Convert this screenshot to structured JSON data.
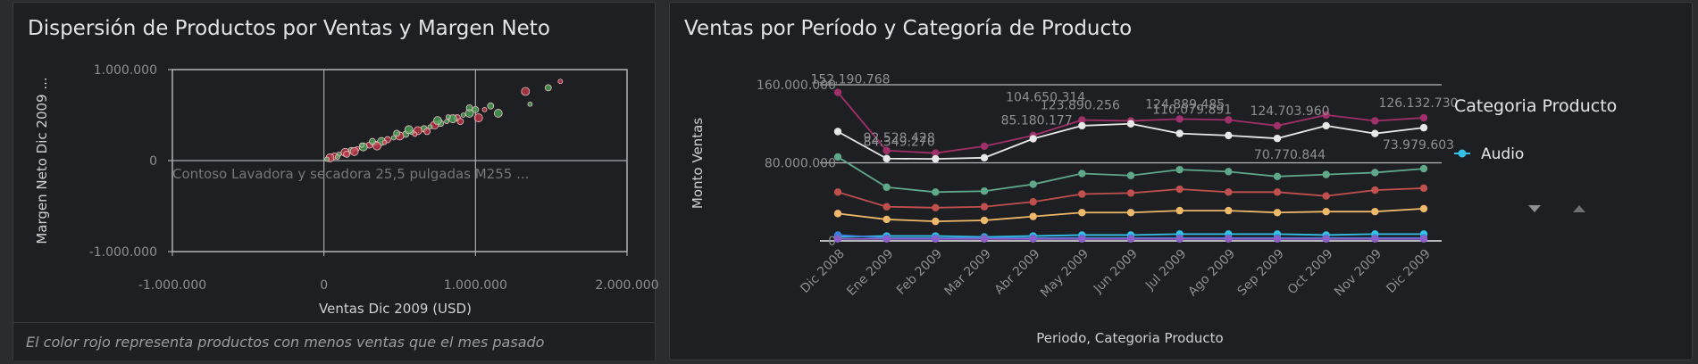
{
  "left_panel": {
    "title": "Dispersión de Productos por Ventas y Margen Neto",
    "footer": "El color rojo representa productos con menos ventas que el mes pasado"
  },
  "right_panel": {
    "title": "Ventas por Período y Categoría de Producto",
    "legend_title": "Categoria Producto",
    "legend_items": [
      "Audio"
    ],
    "legend_nav": [
      "▼",
      "▲"
    ]
  },
  "chart_data": [
    {
      "type": "scatter",
      "title": "Dispersión de Productos por Ventas y Margen Neto",
      "xlabel": "Ventas Dic 2009 (USD)",
      "ylabel": "Margen Neto Dic 2009 ...",
      "xlim": [
        -1000000,
        2000000
      ],
      "ylim": [
        -1000000,
        1000000
      ],
      "x_ticks": [
        "-1.000.000",
        "0",
        "1.000.000",
        "2.000.000"
      ],
      "y_ticks": [
        "1.000.000",
        "0",
        "-1.000.000"
      ],
      "grid": true,
      "annotation": "Contoso Lavadora y secadora 25,5 pulgadas M255 ...",
      "colors": {
        "lower_sales": "#c8384a",
        "higher_sales": "#4cae5c"
      },
      "series": [
        {
          "name": "",
          "points": [
            [
              1560000,
              870000,
              "red"
            ],
            [
              1480000,
              800000,
              "green"
            ],
            [
              1330000,
              760000,
              "red"
            ],
            [
              1360000,
              620000,
              "green"
            ],
            [
              1100000,
              600000,
              "green"
            ],
            [
              1150000,
              520000,
              "green"
            ],
            [
              1060000,
              560000,
              "red"
            ],
            [
              1000000,
              560000,
              "green"
            ],
            [
              960000,
              520000,
              "green"
            ],
            [
              920000,
              500000,
              "green"
            ],
            [
              880000,
              470000,
              "red"
            ],
            [
              850000,
              460000,
              "green"
            ],
            [
              810000,
              430000,
              "green"
            ],
            [
              770000,
              410000,
              "green"
            ],
            [
              730000,
              390000,
              "red"
            ],
            [
              700000,
              370000,
              "green"
            ],
            [
              660000,
              350000,
              "green"
            ],
            [
              620000,
              330000,
              "red"
            ],
            [
              580000,
              310000,
              "green"
            ],
            [
              540000,
              290000,
              "green"
            ],
            [
              500000,
              270000,
              "red"
            ],
            [
              460000,
              250000,
              "green"
            ],
            [
              420000,
              230000,
              "red"
            ],
            [
              380000,
              210000,
              "green"
            ],
            [
              340000,
              190000,
              "green"
            ],
            [
              300000,
              170000,
              "red"
            ],
            [
              260000,
              150000,
              "green"
            ],
            [
              220000,
              130000,
              "red"
            ],
            [
              180000,
              110000,
              "green"
            ],
            [
              140000,
              90000,
              "red"
            ],
            [
              100000,
              70000,
              "green"
            ],
            [
              70000,
              50000,
              "red"
            ],
            [
              40000,
              30000,
              "red"
            ],
            [
              20000,
              15000,
              "green"
            ],
            [
              900000,
              430000,
              "red"
            ],
            [
              750000,
              440000,
              "green"
            ],
            [
              600000,
              290000,
              "red"
            ],
            [
              480000,
              300000,
              "green"
            ],
            [
              350000,
              160000,
              "red"
            ],
            [
              250000,
              170000,
              "green"
            ],
            [
              150000,
              70000,
              "red"
            ],
            [
              1020000,
              470000,
              "red"
            ],
            [
              820000,
              480000,
              "green"
            ],
            [
              680000,
              320000,
              "red"
            ],
            [
              560000,
              340000,
              "green"
            ],
            [
              400000,
              200000,
              "red"
            ],
            [
              320000,
              210000,
              "green"
            ],
            [
              200000,
              100000,
              "red"
            ],
            [
              90000,
              40000,
              "green"
            ],
            [
              960000,
              580000,
              "green"
            ]
          ]
        }
      ]
    },
    {
      "type": "line",
      "title": "Ventas por Período y Categoría de Producto",
      "xlabel": "Periodo, Categoria Producto",
      "ylabel": "Monto Ventas",
      "ylim": [
        0,
        160000000
      ],
      "y_ticks": [
        "160.000.000",
        "80.000.000",
        "0"
      ],
      "categories": [
        "Dic 2008",
        "Ene 2009",
        "Feb 2009",
        "Mar 2009",
        "Abr 2009",
        "May 2009",
        "Jun 2009",
        "Jul 2009",
        "Ago 2009",
        "Sep 2009",
        "Oct 2009",
        "Nov 2009",
        "Dic 2009"
      ],
      "series": [
        {
          "color": "#a0306a",
          "values": [
            152190768,
            92528428,
            90000000,
            97000000,
            108000000,
            123890256,
            123000000,
            124889485,
            124000000,
            118000000,
            129000000,
            123000000,
            126132730
          ]
        },
        {
          "color": "#e8e8e8",
          "values": [
            112000000,
            84349270,
            84000000,
            85180177,
            104650314,
            118000000,
            120000000,
            110079891,
            108000000,
            105000000,
            118000000,
            110000000,
            116000000
          ]
        },
        {
          "color": "#5fa88a",
          "values": [
            86000000,
            55000000,
            50000000,
            51000000,
            58000000,
            69000000,
            67000000,
            73000000,
            71000000,
            66000000,
            68000000,
            70000000,
            73979603
          ]
        },
        {
          "color": "#c0504d",
          "values": [
            50000000,
            35000000,
            34000000,
            35000000,
            40000000,
            48000000,
            49000000,
            53000000,
            50000000,
            50000000,
            46000000,
            52000000,
            54000000
          ]
        },
        {
          "color": "#f0b96a",
          "values": [
            28000000,
            22000000,
            20000000,
            21000000,
            25000000,
            29000000,
            29000000,
            31000000,
            31000000,
            29000000,
            30000000,
            30000000,
            33000000
          ]
        },
        {
          "color": "#35c2e8",
          "values": [
            4000000,
            5000000,
            5000000,
            4000000,
            5000000,
            6000000,
            6000000,
            7000000,
            7000000,
            7000000,
            6000000,
            7000000,
            7000000
          ]
        },
        {
          "color": "#3e7edb",
          "values": [
            6000000,
            3000000,
            3000000,
            3000000,
            3000000,
            3000000,
            3000000,
            3000000,
            3000000,
            3000000,
            3000000,
            3000000,
            3000000
          ]
        },
        {
          "color": "#8b5fc8",
          "values": [
            2000000,
            2000000,
            2000000,
            2000000,
            2000000,
            2000000,
            2000000,
            2000000,
            2000000,
            2000000,
            2000000,
            2000000,
            2000000
          ]
        }
      ],
      "data_labels": [
        "152.190.768",
        "92.528.428",
        "84.349.270",
        "85.180.177",
        "123.890.256",
        "104.650.314",
        "124.889.485",
        "110.079.891",
        "124.703.960",
        "70.770.844",
        "126.132.730",
        "73.979.603"
      ],
      "legend": {
        "position": "right"
      }
    }
  ]
}
